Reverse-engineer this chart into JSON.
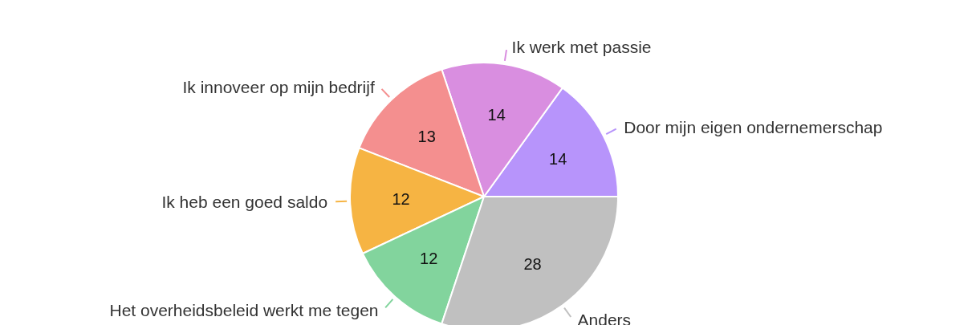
{
  "chart_data": {
    "type": "pie",
    "categories": [
      "Door mijn eigen ondernemerschap",
      "Ik werk met passie",
      "Ik innoveer op mijn bedrijf",
      "Ik heb een goed saldo",
      "Het overheidsbeleid werkt me tegen",
      "Anders"
    ],
    "values": [
      14,
      14,
      13,
      12,
      12,
      28
    ],
    "colors": [
      "#b794fb",
      "#d98ee0",
      "#f48f8f",
      "#f6b443",
      "#82d49d",
      "#c0c0c0"
    ],
    "data_labels": true,
    "legend": false
  }
}
